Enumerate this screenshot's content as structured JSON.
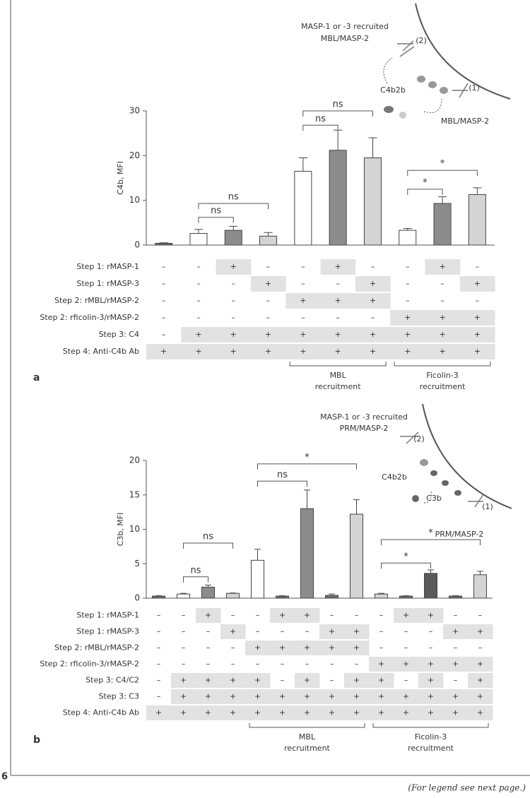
{
  "page_number": "6",
  "footer": "(For legend see next page.)",
  "chart_data": [
    {
      "type": "bar",
      "panel": "a",
      "ylabel": "C4b, MFI",
      "ylim": [
        0,
        30
      ],
      "yticks": [
        0,
        10,
        20,
        30
      ],
      "categories": [
        null,
        null,
        null,
        null,
        null,
        null,
        null,
        null,
        null,
        null
      ],
      "values": [
        0.4,
        2.6,
        3.3,
        2.0,
        16.5,
        21.2,
        19.5,
        3.3,
        9.3,
        11.3
      ],
      "errors": [
        0.1,
        0.9,
        0.9,
        0.8,
        3.0,
        4.5,
        4.5,
        0.4,
        1.5,
        1.5
      ],
      "colors": [
        "#6e6e6e",
        "#ffffff",
        "#8c8c8c",
        "#d4d4d4",
        "#ffffff",
        "#8c8c8c",
        "#d4d4d4",
        "#ffffff",
        "#8c8c8c",
        "#d4d4d4"
      ],
      "significance": [
        "ns",
        "ns",
        "ns",
        "ns",
        "*",
        "*"
      ],
      "table": {
        "row_labels": [
          "Step 1: rMASP-1",
          "Step 1: rMASP-3",
          "Step 2: rMBL/rMASP-2",
          "Step 2: rficolin-3/rMASP-2",
          "Step 3: C4",
          "Step 4: Anti-C4b Ab"
        ],
        "rows": [
          [
            "–",
            "–",
            "+",
            "–",
            "–",
            "+",
            "–",
            "–",
            "+",
            "–"
          ],
          [
            "–",
            "–",
            "–",
            "+",
            "–",
            "–",
            "+",
            "–",
            "–",
            "+"
          ],
          [
            "–",
            "–",
            "–",
            "–",
            "+",
            "+",
            "+",
            "–",
            "–",
            "–"
          ],
          [
            "–",
            "–",
            "–",
            "–",
            "–",
            "–",
            "–",
            "+",
            "+",
            "+"
          ],
          [
            "–",
            "+",
            "+",
            "+",
            "+",
            "+",
            "+",
            "+",
            "+",
            "+"
          ],
          [
            "+",
            "+",
            "+",
            "+",
            "+",
            "+",
            "+",
            "+",
            "+",
            "+"
          ]
        ]
      },
      "groups": [
        [
          "MBL",
          "recruitment"
        ],
        [
          "Ficolin-3",
          "recruitment"
        ]
      ],
      "diagram": {
        "title": [
          "MASP-1 or -3 recruited",
          "MBL/MASP-2"
        ],
        "labels": [
          "(2)",
          "C4b2b",
          "(1)",
          "MBL/MASP-2"
        ]
      }
    },
    {
      "type": "bar",
      "panel": "b",
      "ylabel": "C3b, MFI",
      "ylim": [
        0,
        20
      ],
      "yticks": [
        0,
        5,
        10,
        15,
        20
      ],
      "categories": [
        null,
        null,
        null,
        null,
        null,
        null,
        null,
        null,
        null,
        null,
        null,
        null,
        null,
        null
      ],
      "values": [
        0.3,
        0.6,
        1.6,
        0.7,
        5.5,
        0.3,
        13.0,
        0.4,
        12.2,
        0.6,
        0.3,
        3.6,
        0.3,
        3.4
      ],
      "errors": [
        0.05,
        0.1,
        0.3,
        0.05,
        1.6,
        0.05,
        2.7,
        0.2,
        2.1,
        0.1,
        0.05,
        0.5,
        0.05,
        0.5
      ],
      "colors": [
        "#6e6e6e",
        "#ffffff",
        "#8c8c8c",
        "#d4d4d4",
        "#ffffff",
        "#6e6e6e",
        "#8c8c8c",
        "#6e6e6e",
        "#d4d4d4",
        "#d4d4d4",
        "#6e6e6e",
        "#5a5a5a",
        "#6e6e6e",
        "#d4d4d4"
      ],
      "significance": [
        "ns",
        "ns",
        "ns",
        "*",
        "*",
        "*"
      ],
      "table": {
        "row_labels": [
          "Step 1: rMASP-1",
          "Step 1: rMASP-3",
          "Step 2: rMBL/rMASP-2",
          "Step 2: rficolin-3/rMASP-2",
          "Step 3: C4/C2",
          "Step 3: C3",
          "Step 4: Anti-C4b Ab"
        ],
        "rows": [
          [
            "–",
            "–",
            "+",
            "–",
            "–",
            "+",
            "+",
            "–",
            "–",
            "–",
            "+",
            "+",
            "–",
            "–"
          ],
          [
            "–",
            "–",
            "–",
            "+",
            "–",
            "–",
            "–",
            "+",
            "+",
            "–",
            "–",
            "–",
            "+",
            "+"
          ],
          [
            "–",
            "–",
            "–",
            "–",
            "+",
            "+",
            "+",
            "+",
            "+",
            "–",
            "–",
            "–",
            "–",
            "–"
          ],
          [
            "–",
            "–",
            "–",
            "–",
            "–",
            "–",
            "–",
            "–",
            "–",
            "+",
            "+",
            "+",
            "+",
            "+"
          ],
          [
            "–",
            "+",
            "+",
            "+",
            "+",
            "–",
            "+",
            "–",
            "+",
            "+",
            "–",
            "+",
            "–",
            "+"
          ],
          [
            "–",
            "+",
            "+",
            "+",
            "+",
            "+",
            "+",
            "+",
            "+",
            "+",
            "+",
            "+",
            "+",
            "+"
          ],
          [
            "+",
            "+",
            "+",
            "+",
            "+",
            "+",
            "+",
            "+",
            "+",
            "+",
            "+",
            "+",
            "+",
            "+"
          ]
        ]
      },
      "groups": [
        [
          "MBL",
          "recruitment"
        ],
        [
          "Ficolin-3",
          "recruitment"
        ]
      ],
      "diagram": {
        "title": [
          "MASP-1 or -3 recruited",
          "PRM/MASP-2"
        ],
        "labels": [
          "(2)",
          "C4b2b",
          "C3b",
          "(1)",
          "PRM/MASP-2"
        ]
      }
    }
  ]
}
